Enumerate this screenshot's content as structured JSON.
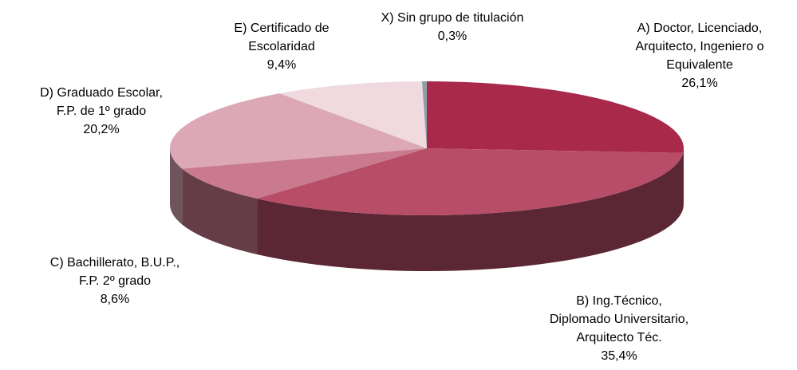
{
  "chart_data": {
    "type": "pie",
    "categories": [
      "A) Doctor, Licenciado,\nArquitecto, Ingeniero o\nEquivalente",
      "B) Ing.Técnico,\nDiplomado Universitario,\nArquitecto Téc.",
      "C) Bachillerato, B.U.P.,\nF.P. 2º grado",
      "D) Graduado Escolar,\nF.P. de 1º grado",
      "E) Certificado de\nEscolaridad",
      "X) Sin grupo de titulación"
    ],
    "values": [
      26.1,
      35.4,
      8.6,
      20.2,
      9.4,
      0.3
    ],
    "value_labels": [
      "26,1%",
      "35,4%",
      "8,6%",
      "20,2%",
      "9,4%",
      "0,3%"
    ],
    "colors": [
      "#a8294a",
      "#b84d68",
      "#c97a8d",
      "#dca8b5",
      "#f0d9df",
      "#8f9fa3"
    ]
  }
}
